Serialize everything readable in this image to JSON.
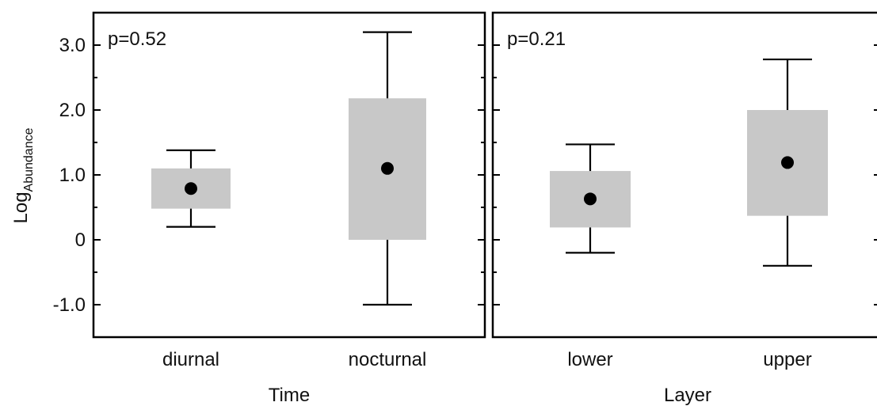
{
  "chart_data": [
    {
      "type": "box",
      "xlabel": "Time",
      "ylabel": "LogAbundance",
      "ylabel_main": "Log",
      "ylabel_sub": "Abundance",
      "ylim": [
        -1.5,
        3.5
      ],
      "yticks": [
        3.0,
        2.0,
        1.0,
        0,
        -1.0
      ],
      "ytick_labels": [
        "3.0",
        "2.0",
        "1.0",
        "0",
        "-1.0"
      ],
      "annotation": "p=0.52",
      "categories": [
        "diurnal",
        "nocturnal"
      ],
      "boxes": [
        {
          "category": "diurnal",
          "whisker_low": 0.2,
          "box_low": 0.48,
          "mean": 0.79,
          "box_high": 1.1,
          "whisker_high": 1.38
        },
        {
          "category": "nocturnal",
          "whisker_low": -1.0,
          "box_low": 0.0,
          "mean": 1.1,
          "box_high": 2.18,
          "whisker_high": 3.2
        }
      ]
    },
    {
      "type": "box",
      "xlabel": "Layer",
      "ylim": [
        -1.5,
        3.5
      ],
      "annotation": "p=0.21",
      "categories": [
        "lower",
        "upper"
      ],
      "boxes": [
        {
          "category": "lower",
          "whisker_low": -0.2,
          "box_low": 0.19,
          "mean": 0.63,
          "box_high": 1.06,
          "whisker_high": 1.47
        },
        {
          "category": "upper",
          "whisker_low": -0.4,
          "box_low": 0.37,
          "mean": 1.19,
          "box_high": 2.0,
          "whisker_high": 2.78
        }
      ]
    }
  ]
}
